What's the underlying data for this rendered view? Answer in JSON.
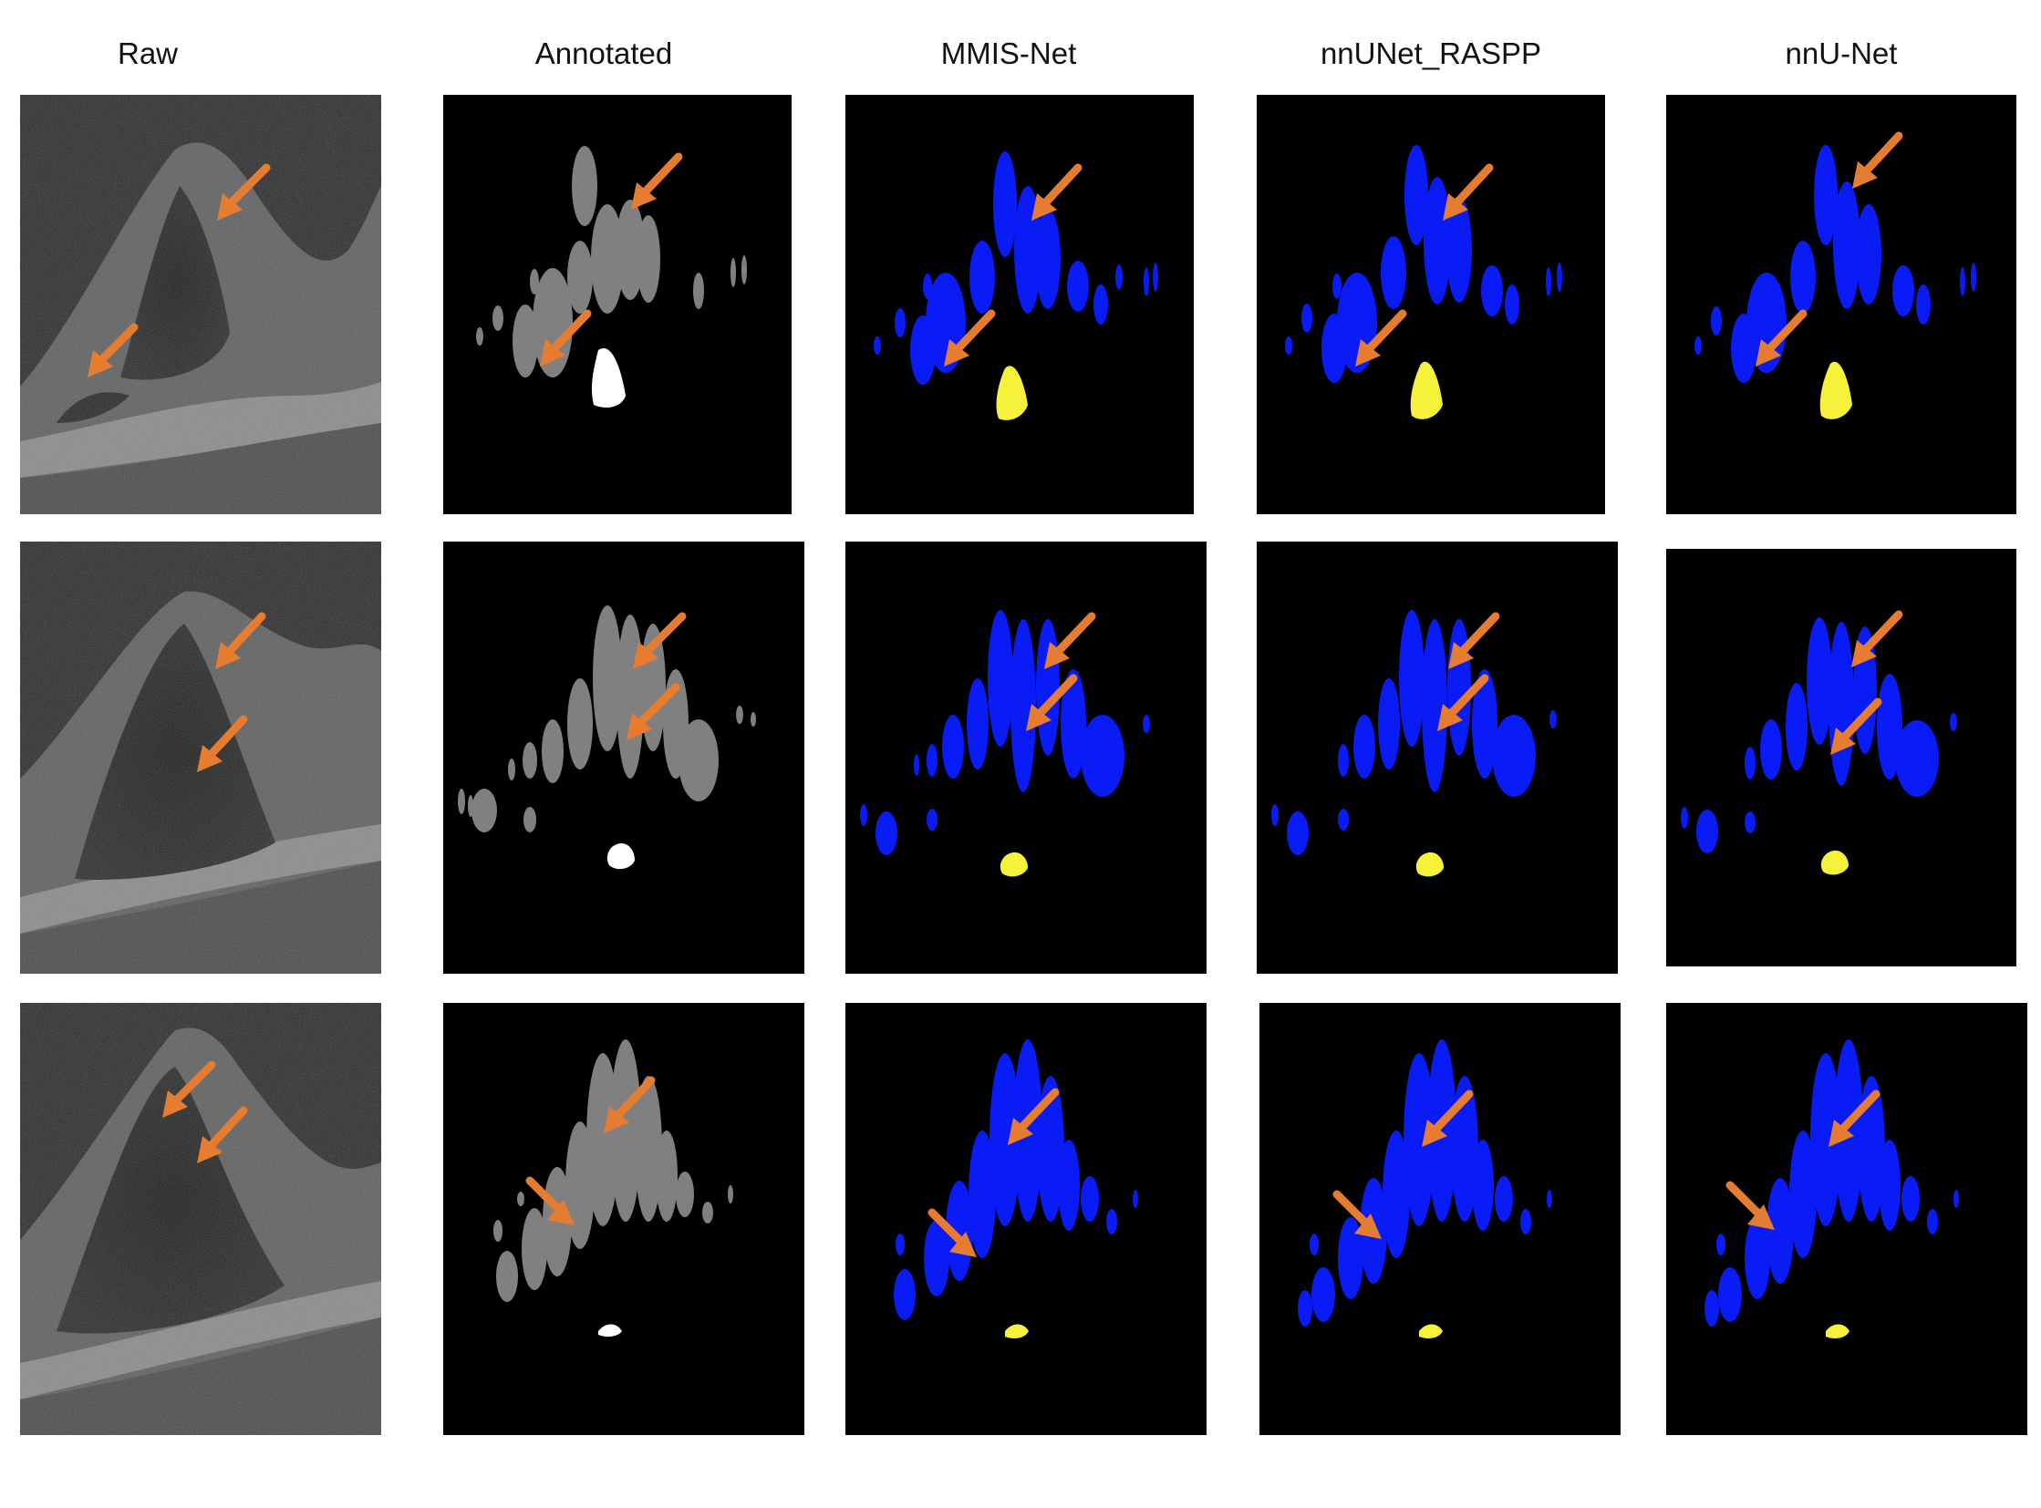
{
  "columns": {
    "raw": "Raw",
    "annotated": "Annotated",
    "mmis": "MMIS-Net",
    "raspp": "nnUNet_RASPP",
    "nnunet": "nnU-Net"
  },
  "colors": {
    "background": "#ffffff",
    "panel": "#000000",
    "annotation_fluid": "#808080",
    "annotation_lesion": "#ffffff",
    "prediction_fluid": "#0a1cf5",
    "prediction_lesion": "#f6f23a",
    "arrow": "#e57c30"
  },
  "rows": [
    {
      "row": 1
    },
    {
      "row": 2
    },
    {
      "row": 3
    }
  ]
}
